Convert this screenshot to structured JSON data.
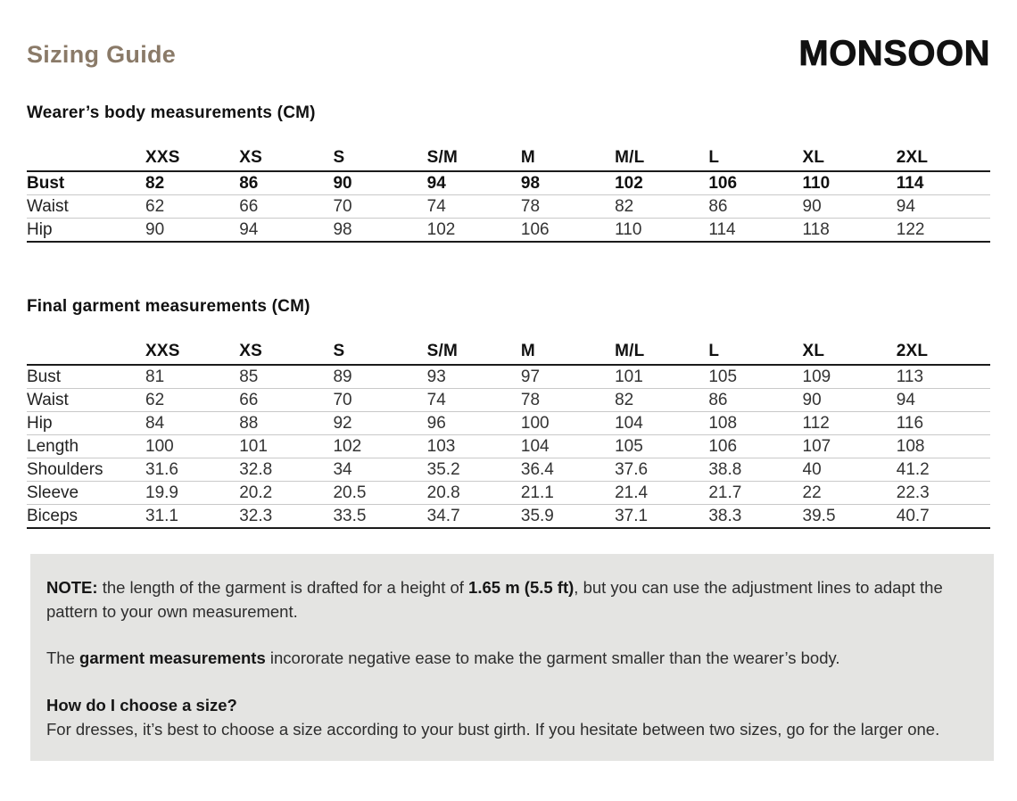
{
  "header": {
    "title": "Sizing Guide",
    "brand": "MONSOON"
  },
  "body_table": {
    "heading": "Wearer’s body measurements (CM)",
    "columns": [
      "XXS",
      "XS",
      "S",
      "S/M",
      "M",
      "M/L",
      "L",
      "XL",
      "2XL"
    ],
    "rows": [
      {
        "label": "Bust",
        "bold": true,
        "values": [
          "82",
          "86",
          "90",
          "94",
          "98",
          "102",
          "106",
          "110",
          "114"
        ]
      },
      {
        "label": "Waist",
        "values": [
          "62",
          "66",
          "70",
          "74",
          "78",
          "82",
          "86",
          "90",
          "94"
        ]
      },
      {
        "label": "Hip",
        "values": [
          "90",
          "94",
          "98",
          "102",
          "106",
          "110",
          "114",
          "118",
          "122"
        ]
      }
    ]
  },
  "garment_table": {
    "heading": "Final garment measurements (CM)",
    "columns": [
      "XXS",
      "XS",
      "S",
      "S/M",
      "M",
      "M/L",
      "L",
      "XL",
      "2XL"
    ],
    "rows": [
      {
        "label": "Bust",
        "values": [
          "81",
          "85",
          "89",
          "93",
          "97",
          "101",
          "105",
          "109",
          "113"
        ]
      },
      {
        "label": "Waist",
        "values": [
          "62",
          "66",
          "70",
          "74",
          "78",
          "82",
          "86",
          "90",
          "94"
        ]
      },
      {
        "label": "Hip",
        "values": [
          "84",
          "88",
          "92",
          "96",
          "100",
          "104",
          "108",
          "112",
          "116"
        ]
      },
      {
        "label": "Length",
        "values": [
          "100",
          "101",
          "102",
          "103",
          "104",
          "105",
          "106",
          "107",
          "108"
        ]
      },
      {
        "label": "Shoulders",
        "values": [
          "31.6",
          "32.8",
          "34",
          "35.2",
          "36.4",
          "37.6",
          "38.8",
          "40",
          "41.2"
        ]
      },
      {
        "label": "Sleeve",
        "values": [
          "19.9",
          "20.2",
          "20.5",
          "20.8",
          "21.1",
          "21.4",
          "21.7",
          "22",
          "22.3"
        ]
      },
      {
        "label": "Biceps",
        "values": [
          "31.1",
          "32.3",
          "33.5",
          "34.7",
          "35.9",
          "37.1",
          "38.3",
          "39.5",
          "40.7"
        ]
      }
    ]
  },
  "note_box": {
    "note_label": "NOTE:",
    "note_part1": " the length of the garment is drafted for a height of ",
    "note_height_bold": "1.65 m (5.5 ft)",
    "note_part2": ", but you can use the adjustment lines to adapt the pattern to your own measurement.",
    "ease_part1": "The ",
    "ease_bold": "garment measurements",
    "ease_part2": " incororate negative ease to make the garment smaller than the wearer’s body.",
    "question_heading": "How do I choose a size?",
    "question_body": "For dresses, it’s best to choose a size according to your bust girth. If you hesitate between two sizes, go for the larger one."
  },
  "colors": {
    "title_brown": "#8a7a68",
    "note_background": "#e4e4e2",
    "text_dark": "#1c1c1c"
  }
}
